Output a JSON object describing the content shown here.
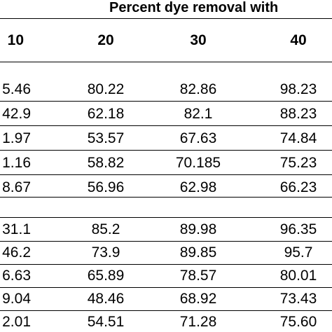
{
  "table": {
    "title": "Percent dye removal with",
    "headers": [
      "10",
      "20",
      "30",
      "40"
    ],
    "group1": [
      [
        "5.46",
        "80.22",
        "82.86",
        "98.23"
      ],
      [
        "42.9",
        "62.18",
        "82.1",
        "88.23"
      ],
      [
        "1.97",
        "53.57",
        "67.63",
        "74.84"
      ],
      [
        "1.16",
        "58.82",
        "70.185",
        "75.23"
      ],
      [
        "8.67",
        "56.96",
        "62.98",
        "66.23"
      ]
    ],
    "group2": [
      [
        "31.1",
        "85.2",
        "89.98",
        "96.35"
      ],
      [
        "46.2",
        "73.9",
        "89.85",
        "95.7"
      ],
      [
        "6.63",
        "65.89",
        "78.57",
        "80.01"
      ],
      [
        "9.04",
        "48.46",
        "68.92",
        "73.43"
      ],
      [
        "2.01",
        "54.51",
        "71.28",
        "75.60"
      ]
    ]
  }
}
